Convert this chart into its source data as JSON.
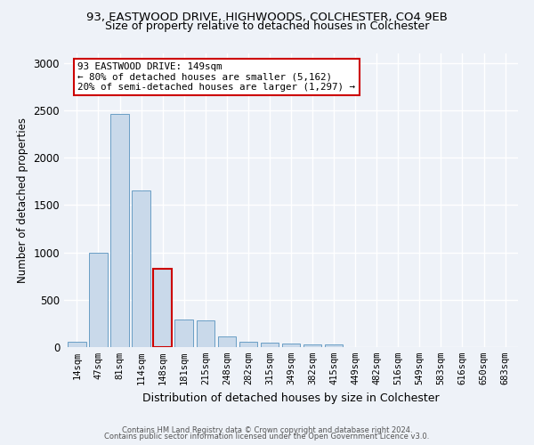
{
  "title1": "93, EASTWOOD DRIVE, HIGHWOODS, COLCHESTER, CO4 9EB",
  "title2": "Size of property relative to detached houses in Colchester",
  "xlabel": "Distribution of detached houses by size in Colchester",
  "ylabel": "Number of detached properties",
  "categories": [
    "14sqm",
    "47sqm",
    "81sqm",
    "114sqm",
    "148sqm",
    "181sqm",
    "215sqm",
    "248sqm",
    "282sqm",
    "315sqm",
    "349sqm",
    "382sqm",
    "415sqm",
    "449sqm",
    "482sqm",
    "516sqm",
    "549sqm",
    "583sqm",
    "616sqm",
    "650sqm",
    "683sqm"
  ],
  "values": [
    55,
    1000,
    2460,
    1650,
    830,
    290,
    280,
    115,
    55,
    50,
    40,
    25,
    30,
    0,
    0,
    0,
    0,
    0,
    0,
    0,
    0
  ],
  "bar_color": "#c9d9ea",
  "bar_edge_color": "#6a9ec5",
  "highlight_bar_index": 4,
  "highlight_bar_edge_color": "#cc0000",
  "annotation_text": "93 EASTWOOD DRIVE: 149sqm\n← 80% of detached houses are smaller (5,162)\n20% of semi-detached houses are larger (1,297) →",
  "annotation_box_edge_color": "#cc0000",
  "ylim": [
    0,
    3100
  ],
  "yticks": [
    0,
    500,
    1000,
    1500,
    2000,
    2500,
    3000
  ],
  "footer1": "Contains HM Land Registry data © Crown copyright and database right 2024.",
  "footer2": "Contains public sector information licensed under the Open Government Licence v3.0.",
  "bg_color": "#eef2f8",
  "plot_bg_color": "#eef2f8",
  "grid_color": "#ffffff"
}
